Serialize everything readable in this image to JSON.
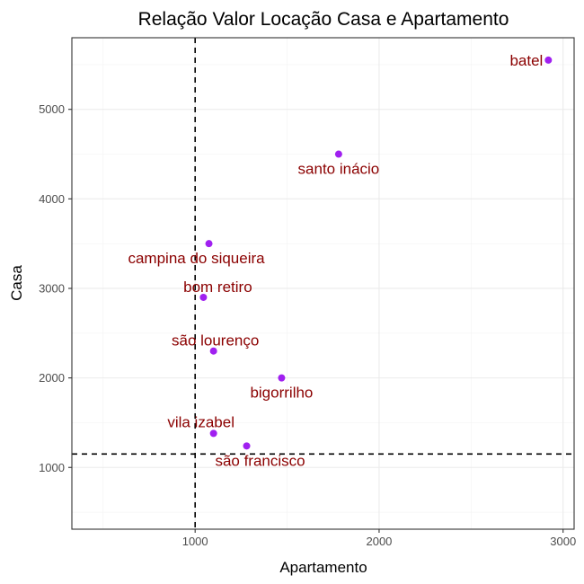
{
  "chart_data": {
    "type": "scatter",
    "title": "Relação Valor Locação Casa e Apartamento",
    "xlabel": "Apartamento",
    "ylabel": "Casa",
    "xlim": [
      330,
      3060
    ],
    "ylim": [
      310,
      5800
    ],
    "x_ticks": [
      1000,
      2000,
      3000
    ],
    "y_ticks": [
      1000,
      2000,
      3000,
      4000,
      5000
    ],
    "grid": true,
    "reference_lines": {
      "vertical_x": 1000,
      "horizontal_y": 1150
    },
    "points": [
      {
        "label": "batel",
        "x": 2920,
        "y": 5550
      },
      {
        "label": "santo inácio",
        "x": 1780,
        "y": 4500
      },
      {
        "label": "campina do siqueira",
        "x": 1075,
        "y": 3500
      },
      {
        "label": "bom retiro",
        "x": 1045,
        "y": 2900
      },
      {
        "label": "são lourenço",
        "x": 1100,
        "y": 2300
      },
      {
        "label": "bigorrilho",
        "x": 1470,
        "y": 2000
      },
      {
        "label": "vila izabel",
        "x": 1100,
        "y": 1380
      },
      {
        "label": "são francisco",
        "x": 1280,
        "y": 1240
      }
    ],
    "colors": {
      "point": "#a020f0",
      "label": "#8b0000"
    }
  }
}
